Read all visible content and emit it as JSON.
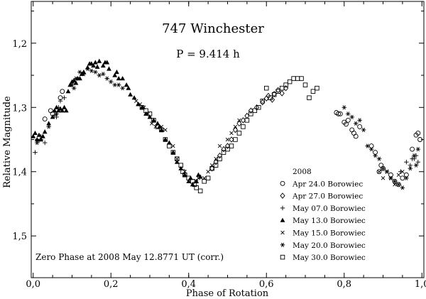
{
  "chart_data": {
    "type": "scatter",
    "title": "747 Winchester",
    "subtitle": "P = 9.414 h",
    "xlabel": "Phase of Rotation",
    "ylabel": "Relative Magnitude",
    "xlim": [
      -0.005,
      1.005
    ],
    "ylim": [
      1.565,
      1.135
    ],
    "y_inverted": true,
    "x_ticks": [
      0.0,
      0.2,
      0.4,
      0.6,
      0.8,
      1.0
    ],
    "x_tick_labels": [
      "0,0",
      "0,2",
      "0,4",
      "0,6",
      "0,8",
      "1,0"
    ],
    "y_ticks": [
      1.2,
      1.3,
      1.4,
      1.5
    ],
    "y_tick_labels": [
      "1,2",
      "1,3",
      "1,4",
      "1,5"
    ],
    "legend_title": "2008",
    "legend_position": "bottom-right",
    "annotation": "Zero Phase at 2008 May 12.8771 UT (corr.)",
    "grid": false,
    "series": [
      {
        "name": "Apr 24.0 Borowiec",
        "marker": "circle-open",
        "points": [
          [
            0.03,
            1.318
          ],
          [
            0.045,
            1.305
          ],
          [
            0.05,
            1.31
          ],
          [
            0.07,
            1.285
          ],
          [
            0.075,
            1.275
          ],
          [
            0.78,
            1.308
          ],
          [
            0.785,
            1.31
          ],
          [
            0.79,
            1.31
          ],
          [
            0.8,
            1.323
          ],
          [
            0.805,
            1.326
          ],
          [
            0.81,
            1.32
          ],
          [
            0.82,
            1.335
          ],
          [
            0.825,
            1.34
          ],
          [
            0.83,
            1.345
          ],
          [
            0.84,
            1.33
          ],
          [
            0.87,
            1.36
          ],
          [
            0.88,
            1.37
          ],
          [
            0.89,
            1.4
          ],
          [
            0.895,
            1.39
          ],
          [
            0.9,
            1.395
          ],
          [
            0.92,
            1.405
          ],
          [
            0.93,
            1.415
          ],
          [
            0.94,
            1.42
          ],
          [
            0.95,
            1.41
          ],
          [
            0.96,
            1.405
          ],
          [
            0.975,
            1.365
          ],
          [
            0.985,
            1.343
          ],
          [
            0.99,
            1.34
          ],
          [
            0.995,
            1.35
          ]
        ]
      },
      {
        "name": "Apr 27.0 Borowiec",
        "marker": "diamond-open",
        "points": [
          [
            0.52,
            1.335
          ],
          [
            0.53,
            1.325
          ],
          [
            0.54,
            1.32
          ],
          [
            0.55,
            1.313
          ],
          [
            0.56,
            1.305
          ],
          [
            0.575,
            1.3
          ],
          [
            0.59,
            1.292
          ],
          [
            0.6,
            1.286
          ],
          [
            0.605,
            1.282
          ],
          [
            0.615,
            1.288
          ],
          [
            0.62,
            1.279
          ],
          [
            0.63,
            1.273
          ],
          [
            0.64,
            1.278
          ],
          [
            0.65,
            1.27
          ],
          [
            0.47,
            1.385
          ],
          [
            0.48,
            1.375
          ],
          [
            0.49,
            1.365
          ],
          [
            0.5,
            1.36
          ],
          [
            0.51,
            1.35
          ],
          [
            0.46,
            1.395
          ]
        ]
      },
      {
        "name": "May 07.0 Borowiec",
        "marker": "plus",
        "points": [
          [
            0.005,
            1.37
          ],
          [
            0.01,
            1.35
          ],
          [
            0.015,
            1.352
          ],
          [
            0.02,
            1.345
          ],
          [
            0.03,
            1.355
          ],
          [
            0.055,
            1.312
          ],
          [
            0.06,
            1.315
          ],
          [
            0.065,
            1.3
          ],
          [
            0.07,
            1.29
          ],
          [
            0.08,
            1.285
          ],
          [
            0.96,
            1.385
          ],
          [
            0.97,
            1.39
          ],
          [
            0.975,
            1.38
          ],
          [
            0.98,
            1.38
          ],
          [
            0.985,
            1.375
          ],
          [
            0.99,
            1.385
          ],
          [
            0.945,
            1.4
          ]
        ]
      },
      {
        "name": "May 13.0 Borowiec",
        "marker": "triangle-filled",
        "points": [
          [
            0.0,
            1.345
          ],
          [
            0.005,
            1.34
          ],
          [
            0.01,
            1.35
          ],
          [
            0.015,
            1.343
          ],
          [
            0.02,
            1.35
          ],
          [
            0.025,
            1.345
          ],
          [
            0.03,
            1.338
          ],
          [
            0.04,
            1.325
          ],
          [
            0.05,
            1.315
          ],
          [
            0.055,
            1.305
          ],
          [
            0.06,
            1.3
          ],
          [
            0.065,
            1.305
          ],
          [
            0.07,
            1.302
          ],
          [
            0.075,
            1.305
          ],
          [
            0.08,
            1.3
          ],
          [
            0.085,
            1.305
          ],
          [
            0.09,
            1.275
          ],
          [
            0.095,
            1.265
          ],
          [
            0.1,
            1.26
          ],
          [
            0.105,
            1.258
          ],
          [
            0.11,
            1.262
          ],
          [
            0.115,
            1.255
          ],
          [
            0.12,
            1.255
          ],
          [
            0.125,
            1.248
          ],
          [
            0.13,
            1.245
          ],
          [
            0.14,
            1.238
          ],
          [
            0.145,
            1.232
          ],
          [
            0.15,
            1.232
          ],
          [
            0.155,
            1.235
          ],
          [
            0.16,
            1.23
          ],
          [
            0.165,
            1.237
          ],
          [
            0.17,
            1.228
          ],
          [
            0.18,
            1.235
          ],
          [
            0.185,
            1.23
          ],
          [
            0.19,
            1.23
          ],
          [
            0.195,
            1.24
          ],
          [
            0.21,
            1.25
          ],
          [
            0.215,
            1.245
          ],
          [
            0.22,
            1.255
          ],
          [
            0.23,
            1.255
          ],
          [
            0.24,
            1.265
          ],
          [
            0.245,
            1.27
          ],
          [
            0.25,
            1.28
          ],
          [
            0.26,
            1.285
          ],
          [
            0.27,
            1.295
          ],
          [
            0.28,
            1.3
          ],
          [
            0.29,
            1.31
          ],
          [
            0.3,
            1.315
          ],
          [
            0.31,
            1.32
          ],
          [
            0.32,
            1.325
          ],
          [
            0.325,
            1.33
          ],
          [
            0.33,
            1.335
          ],
          [
            0.34,
            1.35
          ],
          [
            0.35,
            1.355
          ],
          [
            0.36,
            1.37
          ],
          [
            0.37,
            1.385
          ],
          [
            0.38,
            1.395
          ],
          [
            0.39,
            1.405
          ],
          [
            0.4,
            1.415
          ],
          [
            0.405,
            1.41
          ],
          [
            0.41,
            1.42
          ],
          [
            0.42,
            1.415
          ],
          [
            0.425,
            1.405
          ],
          [
            0.43,
            1.408
          ]
        ]
      },
      {
        "name": "May 15.0 Borowiec",
        "marker": "x",
        "points": [
          [
            0.265,
            1.29
          ],
          [
            0.275,
            1.295
          ],
          [
            0.285,
            1.3
          ],
          [
            0.295,
            1.31
          ],
          [
            0.305,
            1.325
          ],
          [
            0.315,
            1.33
          ],
          [
            0.33,
            1.33
          ],
          [
            0.34,
            1.335
          ],
          [
            0.36,
            1.36
          ],
          [
            0.37,
            1.38
          ],
          [
            0.38,
            1.395
          ],
          [
            0.39,
            1.4
          ],
          [
            0.42,
            1.415
          ],
          [
            0.425,
            1.41
          ],
          [
            0.44,
            1.41
          ],
          [
            0.45,
            1.4
          ],
          [
            0.46,
            1.39
          ],
          [
            0.47,
            1.38
          ],
          [
            0.48,
            1.36
          ],
          [
            0.5,
            1.35
          ],
          [
            0.51,
            1.34
          ],
          [
            0.52,
            1.33
          ],
          [
            0.53,
            1.32
          ],
          [
            0.89,
            1.4
          ],
          [
            0.9,
            1.41
          ],
          [
            0.91,
            1.4
          ],
          [
            0.92,
            1.41
          ],
          [
            0.93,
            1.42
          ],
          [
            0.94,
            1.405
          ],
          [
            0.95,
            1.4
          ]
        ]
      },
      {
        "name": "May 20.0 Borowiec",
        "marker": "asterisk",
        "points": [
          [
            0.01,
            1.355
          ],
          [
            0.02,
            1.35
          ],
          [
            0.04,
            1.33
          ],
          [
            0.06,
            1.31
          ],
          [
            0.1,
            1.265
          ],
          [
            0.105,
            1.27
          ],
          [
            0.11,
            1.255
          ],
          [
            0.12,
            1.245
          ],
          [
            0.13,
            1.248
          ],
          [
            0.14,
            1.24
          ],
          [
            0.15,
            1.243
          ],
          [
            0.16,
            1.245
          ],
          [
            0.17,
            1.25
          ],
          [
            0.18,
            1.248
          ],
          [
            0.19,
            1.255
          ],
          [
            0.2,
            1.26
          ],
          [
            0.21,
            1.265
          ],
          [
            0.22,
            1.265
          ],
          [
            0.23,
            1.27
          ],
          [
            0.8,
            1.3
          ],
          [
            0.81,
            1.31
          ],
          [
            0.82,
            1.315
          ],
          [
            0.83,
            1.325
          ],
          [
            0.84,
            1.32
          ],
          [
            0.85,
            1.335
          ],
          [
            0.86,
            1.36
          ],
          [
            0.87,
            1.365
          ],
          [
            0.88,
            1.375
          ],
          [
            0.89,
            1.38
          ],
          [
            0.9,
            1.395
          ],
          [
            0.91,
            1.4
          ],
          [
            0.92,
            1.41
          ],
          [
            0.93,
            1.415
          ],
          [
            0.94,
            1.42
          ],
          [
            0.95,
            1.425
          ],
          [
            0.96,
            1.41
          ],
          [
            0.97,
            1.395
          ],
          [
            0.98,
            1.375
          ],
          [
            0.99,
            1.365
          ],
          [
            0.985,
            1.39
          ]
        ]
      },
      {
        "name": "May 30.0 Borowiec",
        "marker": "square-open",
        "points": [
          [
            0.28,
            1.3
          ],
          [
            0.29,
            1.305
          ],
          [
            0.3,
            1.31
          ],
          [
            0.31,
            1.32
          ],
          [
            0.32,
            1.33
          ],
          [
            0.33,
            1.335
          ],
          [
            0.34,
            1.35
          ],
          [
            0.35,
            1.36
          ],
          [
            0.36,
            1.37
          ],
          [
            0.37,
            1.38
          ],
          [
            0.38,
            1.39
          ],
          [
            0.385,
            1.4
          ],
          [
            0.39,
            1.405
          ],
          [
            0.4,
            1.41
          ],
          [
            0.41,
            1.415
          ],
          [
            0.415,
            1.42
          ],
          [
            0.42,
            1.425
          ],
          [
            0.43,
            1.43
          ],
          [
            0.44,
            1.415
          ],
          [
            0.45,
            1.41
          ],
          [
            0.46,
            1.395
          ],
          [
            0.47,
            1.39
          ],
          [
            0.48,
            1.38
          ],
          [
            0.49,
            1.37
          ],
          [
            0.5,
            1.365
          ],
          [
            0.51,
            1.36
          ],
          [
            0.52,
            1.35
          ],
          [
            0.53,
            1.34
          ],
          [
            0.54,
            1.33
          ],
          [
            0.55,
            1.32
          ],
          [
            0.56,
            1.31
          ],
          [
            0.57,
            1.305
          ],
          [
            0.58,
            1.3
          ],
          [
            0.59,
            1.29
          ],
          [
            0.6,
            1.27
          ],
          [
            0.61,
            1.285
          ],
          [
            0.62,
            1.28
          ],
          [
            0.63,
            1.275
          ],
          [
            0.64,
            1.27
          ],
          [
            0.65,
            1.265
          ],
          [
            0.66,
            1.26
          ],
          [
            0.67,
            1.255
          ],
          [
            0.68,
            1.255
          ],
          [
            0.69,
            1.255
          ],
          [
            0.7,
            1.265
          ],
          [
            0.71,
            1.285
          ],
          [
            0.72,
            1.275
          ],
          [
            0.73,
            1.27
          ]
        ]
      }
    ]
  }
}
